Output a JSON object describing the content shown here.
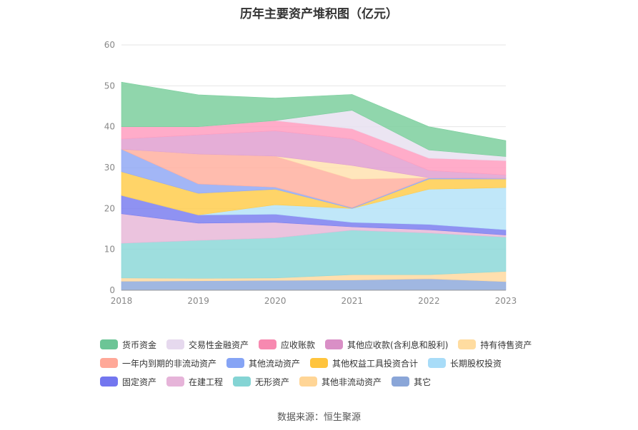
{
  "chart_data": {
    "type": "area",
    "stacked": true,
    "title": "历年主要资产堆积图（亿元）",
    "source": "数据来源：恒生聚源",
    "categories": [
      "2018",
      "2019",
      "2020",
      "2021",
      "2022",
      "2023"
    ],
    "ylim": [
      0,
      60
    ],
    "yticks": [
      0,
      10,
      20,
      30,
      40,
      50,
      60
    ],
    "grid": true,
    "legend_position": "bottom",
    "series": [
      {
        "name": "其它",
        "color": "#8faadc",
        "values": [
          2.2,
          2.3,
          2.4,
          2.5,
          2.8,
          2.1
        ]
      },
      {
        "name": "其他非流动资产",
        "color": "#ffd9a0",
        "values": [
          0.8,
          0.6,
          0.6,
          1.3,
          1.0,
          2.5
        ]
      },
      {
        "name": "无形资产",
        "color": "#8dd8d8",
        "values": [
          8.5,
          9.3,
          9.8,
          10.9,
          10.2,
          8.4
        ]
      },
      {
        "name": "在建工程",
        "color": "#e8b8d8",
        "values": [
          7.2,
          4.2,
          3.8,
          0.8,
          0.8,
          0.5
        ]
      },
      {
        "name": "固定资产",
        "color": "#7b7ff0",
        "values": [
          4.5,
          2.0,
          2.0,
          1.1,
          1.3,
          1.3
        ]
      },
      {
        "name": "长期股权投资",
        "color": "#b5e3f8",
        "values": [
          0.0,
          0.0,
          2.3,
          3.4,
          8.6,
          10.3
        ]
      },
      {
        "name": "其他权益工具投资合计",
        "color": "#ffcc4d",
        "values": [
          5.8,
          5.3,
          3.8,
          0.0,
          2.5,
          2.1
        ]
      },
      {
        "name": "其他流动资产",
        "color": "#92a9f5",
        "values": [
          5.5,
          2.3,
          0.5,
          0.2,
          0.3,
          0.2
        ]
      },
      {
        "name": "一年内到期的非流动资产",
        "color": "#ffb0a0",
        "values": [
          0.0,
          7.3,
          7.6,
          7.0,
          0.0,
          0.0
        ]
      },
      {
        "name": "持有待售资产",
        "color": "#ffe2b0",
        "values": [
          0.0,
          0.0,
          0.0,
          3.3,
          0.0,
          0.0
        ]
      },
      {
        "name": "其他应收款(含利息和股利)",
        "color": "#e0a0d0",
        "values": [
          2.5,
          4.7,
          6.2,
          6.5,
          1.8,
          0.8
        ]
      },
      {
        "name": "应收账款",
        "color": "#ff9ec0",
        "values": [
          3.0,
          2.0,
          2.5,
          2.5,
          3.0,
          3.5
        ]
      },
      {
        "name": "交易性金融资产",
        "color": "#e8e0f0",
        "values": [
          0.0,
          0.0,
          0.0,
          4.5,
          2.0,
          1.0
        ]
      },
      {
        "name": "货币资金",
        "color": "#7ccf9e",
        "values": [
          10.9,
          7.8,
          5.5,
          3.9,
          5.7,
          3.9
        ]
      }
    ],
    "legend_rows": [
      [
        {
          "name": "货币资金",
          "color": "#6cc596"
        },
        {
          "name": "交易性金融资产",
          "color": "#e6d9ee"
        },
        {
          "name": "应收账款",
          "color": "#f789b0"
        },
        {
          "name": "其他应收款(含利息和股利)",
          "color": "#d98fc6"
        },
        {
          "name": "持有待售资产",
          "color": "#ffdca0"
        }
      ],
      [
        {
          "name": "一年内到期的非流动资产",
          "color": "#ffa898"
        },
        {
          "name": "其他流动资产",
          "color": "#86a4f5"
        },
        {
          "name": "其他权益工具投资合计",
          "color": "#ffc43d"
        },
        {
          "name": "长期股权投资",
          "color": "#a8dcf8"
        }
      ],
      [
        {
          "name": "固定资产",
          "color": "#7376ef"
        },
        {
          "name": "在建工程",
          "color": "#e6b4d9"
        },
        {
          "name": "无形资产",
          "color": "#84d4d4"
        },
        {
          "name": "其他非流动资产",
          "color": "#ffd596"
        },
        {
          "name": "其它",
          "color": "#8aa6d8"
        }
      ]
    ]
  }
}
